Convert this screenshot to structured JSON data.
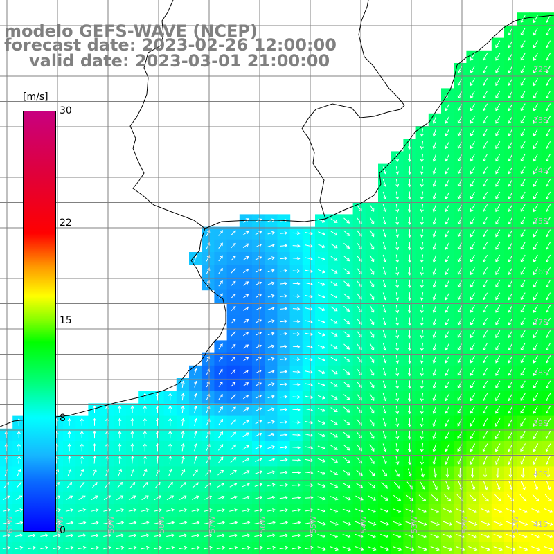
{
  "header": {
    "line1": "modelo GEFS-WAVE (NCEP)",
    "line2": "forecast date: 2023-02-26 12:00:00",
    "line3": "valid date: 2023-03-01 21:00:00"
  },
  "colorbar": {
    "unit": "[m/s]",
    "min": 0,
    "max": 30,
    "ticks": [
      {
        "label": "30",
        "value": 30
      },
      {
        "label": "22",
        "value": 22
      },
      {
        "label": "15",
        "value": 15
      },
      {
        "label": "8",
        "value": 8
      },
      {
        "label": "0",
        "value": 0
      }
    ]
  },
  "map": {
    "lat_labels": [
      "32S",
      "33S",
      "34S",
      "35S",
      "36S",
      "37S",
      "38S",
      "39S",
      "40S",
      "41S"
    ],
    "lon_labels": [
      "61W",
      "60W",
      "59W",
      "58W",
      "57W",
      "56W",
      "55W",
      "54W",
      "53W",
      "52W",
      "51W"
    ],
    "variable": "wind speed",
    "colors": {
      "land": "#ffffff",
      "grid": "#808080",
      "coast": "#000000",
      "arrows": "#ffffff"
    }
  }
}
